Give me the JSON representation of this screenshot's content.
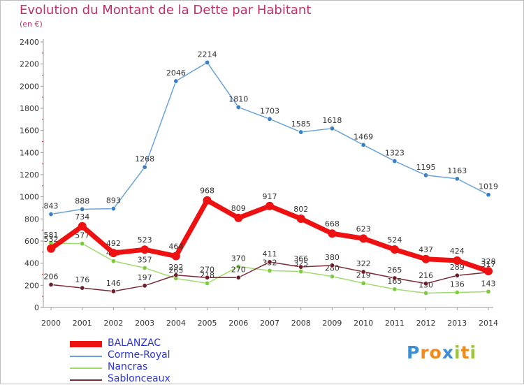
{
  "header": {
    "title": "Evolution du Montant de la Dette par Habitant",
    "subtitle": "(en €)"
  },
  "brand": {
    "text": "Proxiti",
    "letters": [
      {
        "ch": "P",
        "color": "#3b8fd4"
      },
      {
        "ch": "r",
        "color": "#f08a1c"
      },
      {
        "ch": "o",
        "color": "#f08a1c"
      },
      {
        "ch": "x",
        "color": "#3b8fd4"
      },
      {
        "ch": "i",
        "color": "#9ac43c"
      },
      {
        "ch": "t",
        "color": "#f08a1c"
      },
      {
        "ch": "i",
        "color": "#9ac43c"
      }
    ]
  },
  "chart_data": {
    "type": "line",
    "title": "Evolution du Montant de la Dette par Habitant",
    "subtitle": "(en €)",
    "x": [
      "2000",
      "2001",
      "2002",
      "2003",
      "2004",
      "2005",
      "2006",
      "2007",
      "2008",
      "2009",
      "2010",
      "2011",
      "2012",
      "2013",
      "2014"
    ],
    "ylim": [
      0,
      2400
    ],
    "yticks": [
      0,
      200,
      400,
      600,
      800,
      1000,
      1200,
      1400,
      1600,
      1800,
      2000,
      2200,
      2400
    ],
    "grid": false,
    "legend_position": "bottom-left",
    "series": [
      {
        "name": "Corme-Royal",
        "color": "#6ba3d6",
        "marker": "#3a7fc4",
        "values": [
          843,
          888,
          893,
          1268,
          2046,
          2214,
          1810,
          1703,
          1585,
          1618,
          1469,
          1323,
          1195,
          1163,
          1019
        ]
      },
      {
        "name": "Nancras",
        "color": "#9edb6c",
        "marker": "#7ccc3e",
        "values": [
          581,
          577,
          419,
          357,
          263,
          218,
          370,
          332,
          325,
          280,
          219,
          165,
          130,
          136,
          143
        ]
      },
      {
        "name": "Sablonceaux",
        "color": "#7a2a35",
        "marker": "#6b1f2a",
        "values": [
          206,
          176,
          146,
          197,
          292,
          270,
          270,
          411,
          366,
          380,
          322,
          265,
          216,
          289,
          317
        ]
      },
      {
        "name": "BALANZAC",
        "color": "#ee1111",
        "marker": "#ee1111",
        "values": [
          532,
          734,
          492,
          523,
          464,
          968,
          809,
          917,
          802,
          668,
          623,
          524,
          437,
          424,
          328
        ]
      }
    ],
    "legend": [
      "BALANZAC",
      "Corme-Royal",
      "Nancras",
      "Sablonceaux"
    ]
  }
}
